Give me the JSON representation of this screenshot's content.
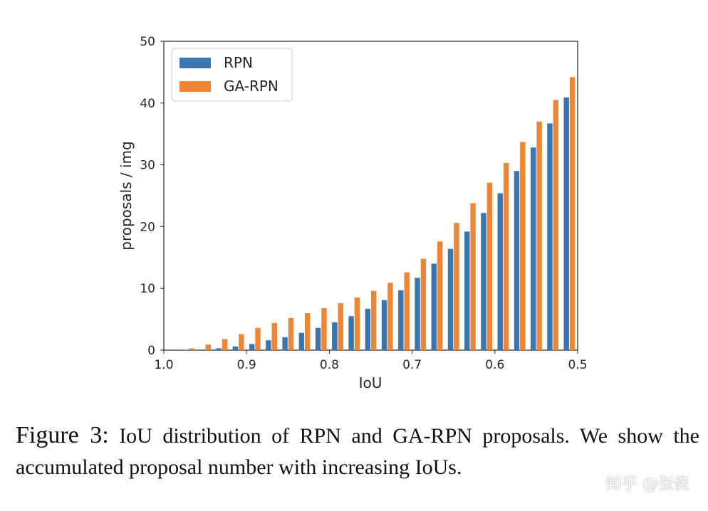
{
  "chart_data": {
    "type": "bar",
    "xlabel": "IoU",
    "ylabel": "proposals / img",
    "ylim": [
      0,
      50
    ],
    "xlim": [
      1.0,
      0.5
    ],
    "x_ticks": [
      "1.0",
      "0.9",
      "0.8",
      "0.7",
      "0.6",
      "0.5"
    ],
    "y_ticks": [
      "0",
      "10",
      "20",
      "30",
      "40",
      "50"
    ],
    "legend_position": "top-left",
    "grid": false,
    "categories": [
      0.97,
      0.95,
      0.93,
      0.91,
      0.89,
      0.87,
      0.85,
      0.83,
      0.81,
      0.79,
      0.77,
      0.75,
      0.73,
      0.71,
      0.69,
      0.67,
      0.65,
      0.63,
      0.61,
      0.59,
      0.57,
      0.55,
      0.53,
      0.51
    ],
    "series": [
      {
        "name": "RPN",
        "color": "#3b75af",
        "values": [
          0.05,
          0.1,
          0.3,
          0.6,
          1.0,
          1.6,
          2.1,
          2.8,
          3.6,
          4.5,
          5.5,
          6.7,
          8.1,
          9.7,
          11.7,
          14.0,
          16.4,
          19.2,
          22.2,
          25.4,
          29.0,
          32.8,
          36.7,
          40.9
        ]
      },
      {
        "name": "GA-RPN",
        "color": "#ef8636",
        "values": [
          0.3,
          0.9,
          1.8,
          2.6,
          3.6,
          4.4,
          5.2,
          6.0,
          6.8,
          7.6,
          8.5,
          9.6,
          10.9,
          12.6,
          14.8,
          17.6,
          20.6,
          23.8,
          27.1,
          30.3,
          33.7,
          37.0,
          40.5,
          44.2
        ]
      }
    ]
  },
  "caption": {
    "figure_label": "Figure 3:",
    "text": "IoU distribution of RPN and GA-RPN proposals. We show the accumulated proposal number with increasing IoUs."
  },
  "watermark": "知乎 @张俊"
}
